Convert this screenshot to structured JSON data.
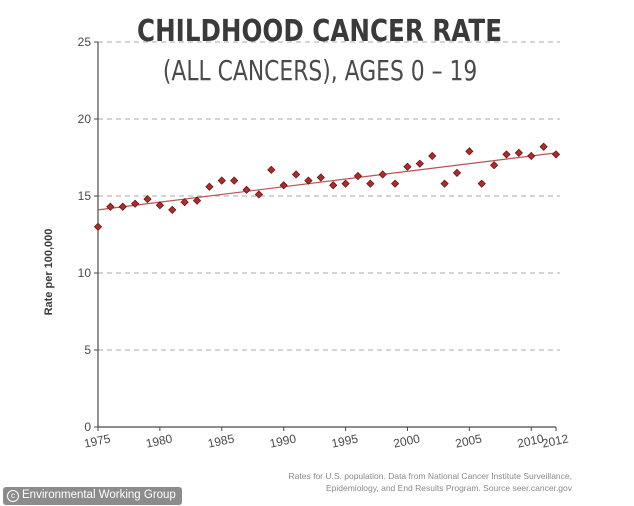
{
  "title": "CHILDHOOD CANCER RATE",
  "subtitle": "(ALL CANCERS), AGES 0 – 19",
  "source_note_lines": [
    "Rates for U.S. population. Data from National Cancer Institute Surveillance,",
    "Epidemiology, and End Results Program. Source seer.cancer.gov"
  ],
  "credit": {
    "icon": "copyright-icon",
    "text": "Environmental Working Group"
  },
  "colors": {
    "marker": "#b02a2a",
    "trend_line": "#b85252",
    "grid": "#a8a8a8",
    "axis": "#4a4a4a"
  },
  "chart_data": {
    "type": "scatter",
    "title": "CHILDHOOD CANCER RATE",
    "subtitle": "(ALL CANCERS), AGES 0 – 19",
    "xlabel": "",
    "ylabel": "Rate per 100,000",
    "xlim": [
      1975,
      2012
    ],
    "ylim": [
      0,
      25
    ],
    "x_ticks": [
      "1975",
      "1980",
      "1985",
      "1990",
      "1995",
      "2000",
      "2005",
      "2010",
      "2012"
    ],
    "y_ticks": [
      "0",
      "5",
      "10",
      "15",
      "20",
      "25"
    ],
    "grid": "horizontal dashed",
    "marker": "diamond",
    "series": [
      {
        "x": [
          1975,
          1976,
          1977,
          1978,
          1979,
          1980,
          1981,
          1982,
          1983,
          1984,
          1985,
          1986,
          1987,
          1988,
          1989,
          1990,
          1991,
          1992,
          1993,
          1994,
          1995,
          1996,
          1997,
          1998,
          1999,
          2000,
          2001,
          2002,
          2003,
          2004,
          2005,
          2006,
          2007,
          2008,
          2009,
          2010,
          2011,
          2012
        ],
        "values": [
          13.0,
          14.3,
          14.3,
          14.5,
          14.8,
          14.4,
          14.1,
          14.6,
          14.7,
          15.6,
          16.0,
          16.0,
          15.4,
          15.1,
          16.7,
          15.7,
          16.4,
          16.0,
          16.2,
          15.7,
          15.8,
          16.3,
          15.8,
          16.4,
          15.8,
          16.9,
          17.1,
          17.6,
          15.8,
          16.5,
          17.9,
          15.8,
          17.0,
          17.7,
          17.8,
          17.6,
          18.2,
          17.7
        ]
      }
    ],
    "trend_line": {
      "x": [
        1975,
        2012
      ],
      "y": [
        14.1,
        17.8
      ]
    }
  }
}
